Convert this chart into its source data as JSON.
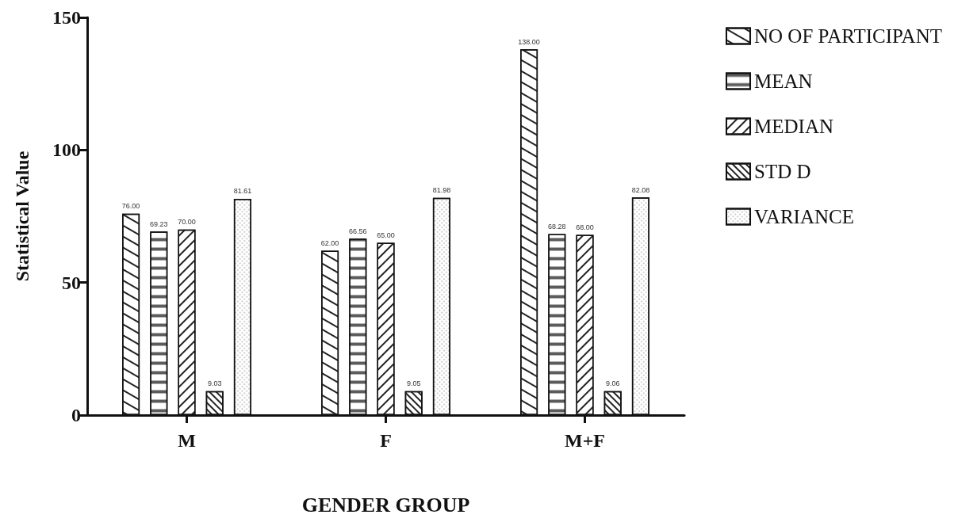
{
  "chart_data": {
    "type": "bar",
    "xlabel": "GENDER GROUP",
    "ylabel": "Statistical Value",
    "categories": [
      "M",
      "F",
      "M+F"
    ],
    "series": [
      {
        "name": "NO OF PARTICIPANT",
        "color": "#ffffff",
        "values": [
          76,
          62,
          138
        ],
        "value_labels": [
          "76.00",
          "62.00",
          "138.00"
        ]
      },
      {
        "name": "MEAN",
        "color": "#ffffff",
        "values": [
          69.23,
          66.56,
          68.28
        ],
        "value_labels": [
          "69.23",
          "66.56",
          "68.28"
        ]
      },
      {
        "name": "MEDIAN",
        "color": "#ffffff",
        "values": [
          70,
          65,
          68
        ],
        "value_labels": [
          "70.00",
          "65.00",
          "68.00"
        ]
      },
      {
        "name": "STD D",
        "color": "#ffffff",
        "values": [
          9.03,
          9.05,
          9.06
        ],
        "value_labels": [
          "9.03",
          "9.05",
          "9.06"
        ]
      },
      {
        "name": "VARIANCE",
        "color": "#ffffff",
        "values": [
          81.61,
          81.98,
          82.08
        ],
        "value_labels": [
          "81.61",
          "81.98",
          "82.08"
        ]
      }
    ],
    "ylim": [
      0,
      150
    ],
    "yticks": [
      0,
      50,
      100,
      150
    ],
    "grid": false,
    "legend": "right"
  }
}
